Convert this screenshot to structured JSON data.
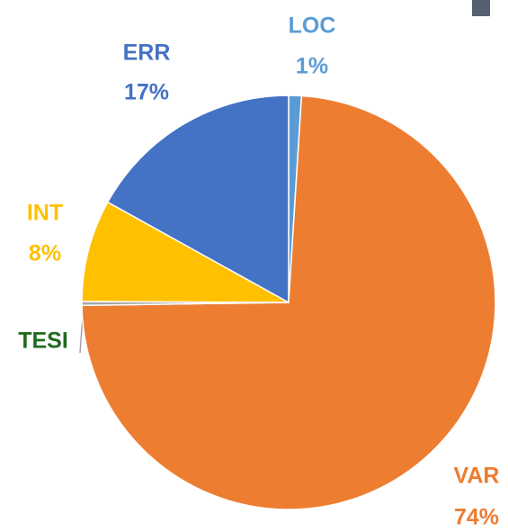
{
  "chart_data": {
    "type": "pie",
    "slices": [
      {
        "name": "LOC",
        "value": 1,
        "value_label": "1%",
        "color": "#5b9bd5",
        "label_color": "#5b9bd5"
      },
      {
        "name": "VAR",
        "value": 74,
        "value_label": "74%",
        "color": "#ed7d31",
        "label_color": "#ed7d31"
      },
      {
        "name": "TESI",
        "value": 0.3,
        "value_label": null,
        "color": "#a5a5a5",
        "label_color": "#1e6b1e"
      },
      {
        "name": "INT",
        "value": 8,
        "value_label": "8%",
        "color": "#ffc000",
        "label_color": "#ffc000"
      },
      {
        "name": "ERR",
        "value": 17,
        "value_label": "17%",
        "color": "#4472c4",
        "label_color": "#4472c4"
      }
    ]
  }
}
